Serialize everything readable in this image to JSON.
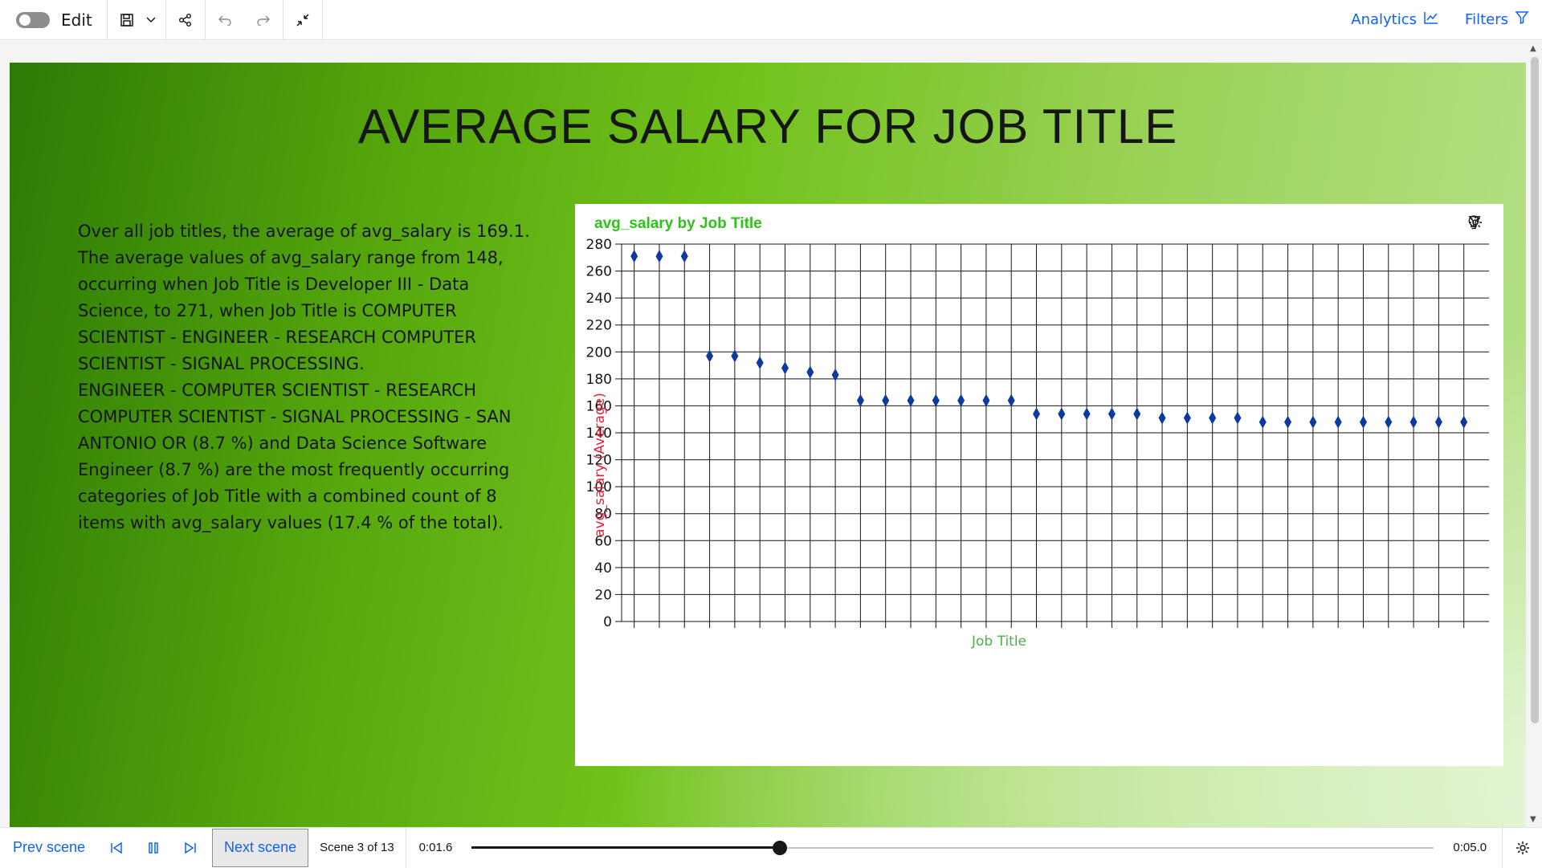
{
  "toolbar": {
    "edit_label": "Edit",
    "analytics_label": "Analytics",
    "filters_label": "Filters"
  },
  "slide": {
    "title": "AVERAGE SALARY FOR JOB TITLE",
    "insight_p1": "Over all job titles, the average of avg_salary is 169.1. The average values of avg_salary range from 148, occurring when Job Title is Developer III - Data Science, to 271, when Job Title is COMPUTER SCIENTIST - ENGINEER - RESEARCH COMPUTER SCIENTIST - SIGNAL PROCESSING.",
    "insight_p2": "ENGINEER - COMPUTER SCIENTIST - RESEARCH COMPUTER SCIENTIST - SIGNAL PROCESSING - SAN ANTONIO OR (8.7 %) and Data Science Software Engineer (8.7 %) are the most frequently occurring categories of Job Title with a combined count of 8 items with avg_salary values (17.4 % of the total)."
  },
  "chart_data": {
    "type": "scatter",
    "title": "avg_salary by Job Title",
    "xlabel": "Job Title",
    "ylabel": "avg_salary (Average)",
    "ylim": [
      0,
      280
    ],
    "yticks": [
      0,
      20,
      40,
      60,
      80,
      100,
      120,
      140,
      160,
      180,
      200,
      220,
      240,
      260,
      280
    ],
    "grid": true,
    "values": [
      271,
      271,
      271,
      197,
      197,
      192,
      188,
      185,
      183,
      164,
      164,
      164,
      164,
      164,
      164,
      164,
      154,
      154,
      154,
      154,
      154,
      151,
      151,
      151,
      151,
      148,
      148,
      148,
      148,
      148,
      148,
      148,
      148,
      148
    ],
    "point_color": "#0d3a9e",
    "title_color": "#2ec21a",
    "axis_label_color": "#e0223a"
  },
  "bottombar": {
    "prev_label": "Prev scene",
    "next_label": "Next scene",
    "scene_label": "Scene 3 of 13",
    "time_current": "0:01.6",
    "time_total": "0:05.0",
    "progress": 0.32
  }
}
